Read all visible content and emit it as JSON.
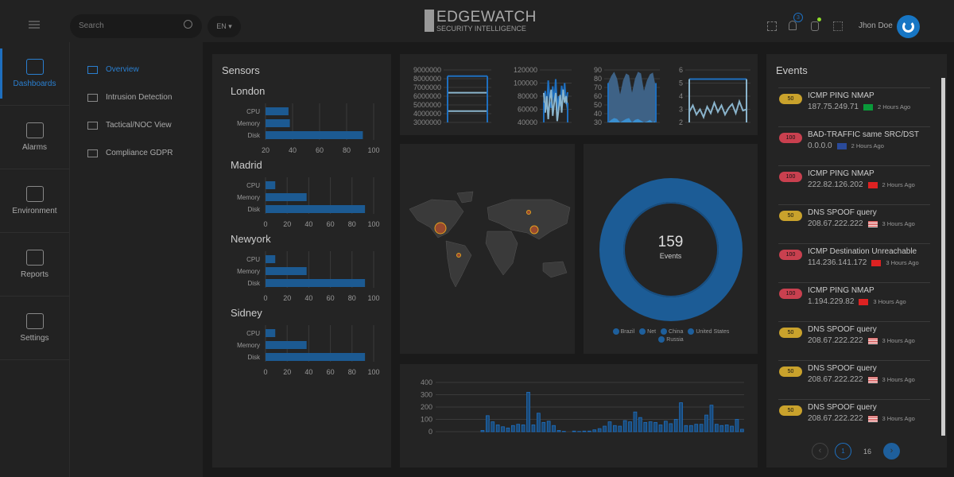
{
  "header": {
    "search_placeholder": "Search",
    "language": "EN",
    "logo_main": "EDGEWATCH",
    "logo_sub": "SECURITY INTELLIGENCE",
    "notification_count": "3",
    "user_name": "Jhon Doe"
  },
  "sidebar": {
    "items": [
      {
        "label": "Dashboards",
        "icon": "dashboard-icon",
        "active": true
      },
      {
        "label": "Alarms",
        "icon": "shield-alarm-icon"
      },
      {
        "label": "Environment",
        "icon": "server-icon"
      },
      {
        "label": "Reports",
        "icon": "clipboard-icon"
      },
      {
        "label": "Settings",
        "icon": "tools-icon"
      }
    ]
  },
  "subnav": {
    "items": [
      {
        "label": "Overview",
        "icon": "monitor-icon",
        "active": true
      },
      {
        "label": "Intrusion Detection",
        "icon": "tools-icon"
      },
      {
        "label": "Tactical/NOC View",
        "icon": "eye-icon"
      },
      {
        "label": "Compliance GDPR",
        "icon": "bank-icon"
      }
    ]
  },
  "sensors": {
    "title": "Sensors"
  },
  "donut": {
    "value": "159",
    "label": "Events",
    "legend": [
      "Brazil",
      "Net",
      "China",
      "United States",
      "Russia"
    ]
  },
  "events": {
    "title": "Events",
    "items": [
      {
        "score": "50",
        "level": "medium",
        "name": "ICMP PING NMAP",
        "ip": "187.75.249.71",
        "country": "Brazil",
        "time": "2 Hours Ago"
      },
      {
        "score": "100",
        "level": "high",
        "name": "BAD-TRAFFIC same SRC/DST",
        "ip": "0.0.0.0",
        "country": "Kosovo",
        "time": "2 Hours Ago"
      },
      {
        "score": "100",
        "level": "high",
        "name": "ICMP PING NMAP",
        "ip": "222.82.126.202",
        "country": "China",
        "time": "2 Hours Ago"
      },
      {
        "score": "50",
        "level": "medium",
        "name": "DNS SPOOF query",
        "ip": "208.67.222.222",
        "country": "United States",
        "time": "3 Hours Ago"
      },
      {
        "score": "100",
        "level": "high",
        "name": "ICMP Destination Unreachable",
        "ip": "114.236.141.172",
        "country": "China",
        "time": "3 Hours Ago"
      },
      {
        "score": "100",
        "level": "high",
        "name": "ICMP PING NMAP",
        "ip": "1.194.229.82",
        "country": "China",
        "time": "3 Hours Ago"
      },
      {
        "score": "50",
        "level": "medium",
        "name": "DNS SPOOF query",
        "ip": "208.67.222.222",
        "country": "United States",
        "time": "3 Hours Ago"
      },
      {
        "score": "50",
        "level": "medium",
        "name": "DNS SPOOF query",
        "ip": "208.67.222.222",
        "country": "United States",
        "time": "3 Hours Ago"
      },
      {
        "score": "50",
        "level": "medium",
        "name": "DNS SPOOF query",
        "ip": "208.67.222.222",
        "country": "United States",
        "time": "3 Hours Ago"
      }
    ],
    "pagination": {
      "current": "1",
      "total": "16"
    }
  },
  "colors": {
    "accent": "#1e5f9c",
    "high": "#c9404f",
    "medium": "#c9a22c",
    "bg": "#1a1a1a",
    "panel": "#242424"
  },
  "chart_data": [
    {
      "type": "bar",
      "orientation": "horizontal",
      "title": "London",
      "categories": [
        "CPU",
        "Memory",
        "Disk"
      ],
      "values": [
        37,
        38,
        92
      ],
      "xlim": [
        20,
        100
      ],
      "ticks": [
        "20",
        "40",
        "60",
        "80",
        "100"
      ]
    },
    {
      "type": "bar",
      "orientation": "horizontal",
      "title": "Madrid",
      "categories": [
        "CPU",
        "Memory",
        "Disk"
      ],
      "values": [
        9,
        38,
        92
      ],
      "xlim": [
        0,
        100
      ],
      "ticks": [
        "0",
        "20",
        "40",
        "60",
        "80",
        "100"
      ]
    },
    {
      "type": "bar",
      "orientation": "horizontal",
      "title": "Newyork",
      "categories": [
        "CPU",
        "Memory",
        "Disk"
      ],
      "values": [
        9,
        38,
        92
      ],
      "xlim": [
        0,
        100
      ],
      "ticks": [
        "0",
        "20",
        "40",
        "60",
        "80",
        "100"
      ]
    },
    {
      "type": "bar",
      "orientation": "horizontal",
      "title": "Sidney",
      "categories": [
        "CPU",
        "Memory",
        "Disk"
      ],
      "values": [
        9,
        38,
        92
      ],
      "xlim": [
        0,
        100
      ],
      "ticks": [
        "0",
        "20",
        "40",
        "60",
        "80",
        "100"
      ]
    },
    {
      "type": "line",
      "ylim": [
        3000000,
        9000000
      ],
      "ticks": [
        "9000000",
        "8000000",
        "7000000",
        "6000000",
        "5000000",
        "4000000",
        "3000000"
      ],
      "series": [
        {
          "values": [
            8300000,
            8300000,
            8300000,
            8300000,
            8300000
          ]
        },
        {
          "values": [
            6400000,
            6400000,
            6400000,
            6400000,
            6400000
          ]
        },
        {
          "values": [
            4300000,
            4300000,
            4300000,
            4300000,
            4300000
          ]
        }
      ]
    },
    {
      "type": "line",
      "ylim": [
        40000,
        120000
      ],
      "ticks": [
        "120000",
        "100000",
        "80000",
        "60000",
        "40000"
      ],
      "series": [
        {
          "values": [
            70000,
            88000,
            60000,
            104000,
            72000,
            62000,
            95000,
            70000,
            106000,
            58000,
            80000,
            65000,
            96000,
            75000,
            100000,
            68000,
            86000
          ]
        },
        {
          "values": [
            85000,
            55000,
            80000,
            45000,
            75000,
            90000,
            50000,
            70000,
            85000,
            42000,
            60000,
            82000,
            55000,
            90000,
            70000,
            80000,
            60000
          ]
        }
      ]
    },
    {
      "type": "area",
      "ylim": [
        30,
        90
      ],
      "ticks": [
        "90",
        "80",
        "70",
        "60",
        "50",
        "40",
        "30"
      ],
      "series": [
        {
          "values": [
            75,
            83,
            88,
            80,
            62,
            78,
            86,
            84,
            64,
            80,
            88,
            86,
            66,
            78,
            85,
            87,
            70
          ]
        },
        {
          "values": [
            30,
            33,
            35,
            34,
            30,
            32,
            34,
            35,
            30,
            33,
            34,
            32,
            30,
            31,
            33,
            30,
            32
          ]
        }
      ]
    },
    {
      "type": "line",
      "ylim": [
        2,
        6
      ],
      "ticks": [
        "6",
        "5",
        "4",
        "3",
        "2"
      ],
      "series": [
        {
          "values": [
            5.3,
            5.3,
            5.3,
            5.3,
            5.3
          ]
        },
        {
          "values": [
            2.8,
            3.3,
            2.6,
            3.0,
            2.4,
            3.2,
            2.7,
            3.5,
            2.8,
            3.3,
            2.6,
            3.1,
            3.4,
            2.7,
            3.6,
            2.9,
            3.0
          ]
        }
      ]
    },
    {
      "type": "bar",
      "ylim": [
        0,
        400
      ],
      "ticks": [
        "400",
        "300",
        "200",
        "100",
        "0"
      ],
      "values": [
        10,
        130,
        80,
        55,
        40,
        30,
        50,
        60,
        55,
        320,
        55,
        150,
        75,
        85,
        50,
        10,
        3,
        0,
        5,
        2,
        5,
        5,
        15,
        25,
        45,
        80,
        50,
        45,
        90,
        80,
        160,
        115,
        75,
        80,
        75,
        55,
        85,
        65,
        100,
        235,
        50,
        50,
        60,
        60,
        135,
        215,
        60,
        50,
        55,
        45,
        100,
        20
      ]
    }
  ]
}
